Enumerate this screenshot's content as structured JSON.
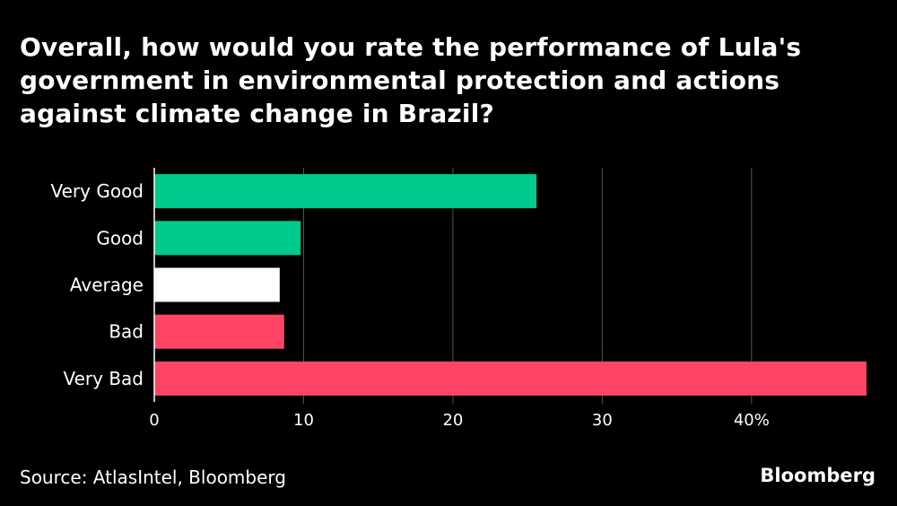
{
  "chart_data": {
    "type": "bar",
    "orientation": "horizontal",
    "title": "Overall, how would you rate the performance of Lula's government in environmental protection and actions against climate change in Brazil?",
    "categories": [
      "Very Good",
      "Good",
      "Average",
      "Bad",
      "Very Bad"
    ],
    "values": [
      25.6,
      9.8,
      8.4,
      8.7,
      47.7
    ],
    "bar_colors": [
      "#00c98d",
      "#00c98d",
      "#ffffff",
      "#ff4466",
      "#ff4466"
    ],
    "xlim": [
      0,
      47.7
    ],
    "x_ticks": [
      0,
      10,
      20,
      30,
      40
    ],
    "x_tick_labels": [
      "0",
      "10",
      "20",
      "30",
      "40%"
    ],
    "grid": true,
    "xlabel": "",
    "ylabel": ""
  },
  "footer": {
    "source": "Source: AtlasIntel, Bloomberg",
    "brand": "Bloomberg"
  },
  "colors": {
    "background": "#000000",
    "text": "#ffffff",
    "grid": "#555555"
  }
}
